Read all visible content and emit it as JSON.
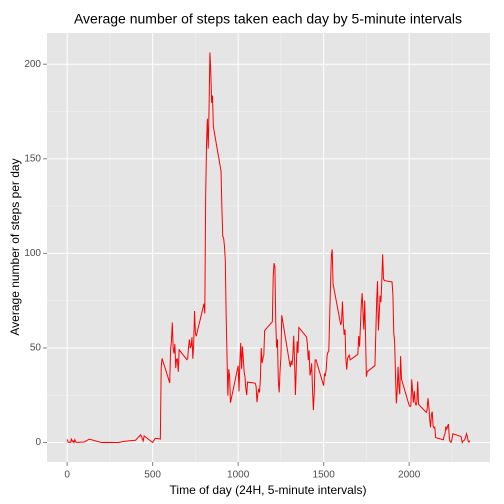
{
  "chart_data": {
    "type": "line",
    "title": "Average number of steps taken each day by 5-minute intervals",
    "xlabel": "Time of day (24H, 5-minute intervals)",
    "ylabel": "Average number of steps per day",
    "color": "#ff0000",
    "grid": true,
    "xlim": [
      -117.75,
      2472.75
    ],
    "ylim": [
      -10.3,
      216.5
    ],
    "xticks": [
      0,
      500,
      1000,
      1500,
      2000
    ],
    "yticks": [
      0,
      50,
      100,
      150,
      200
    ],
    "x_minor_grid": [
      250,
      750,
      1250,
      1750,
      2250
    ],
    "y_minor_grid": [
      25,
      75,
      125,
      175
    ],
    "x": [
      0,
      5,
      10,
      15,
      20,
      25,
      30,
      35,
      40,
      45,
      50,
      55,
      100,
      130,
      200,
      230,
      300,
      330,
      400,
      430,
      445,
      450,
      500,
      515,
      530,
      545,
      550,
      555,
      600,
      605,
      610,
      615,
      620,
      625,
      630,
      635,
      640,
      645,
      650,
      655,
      700,
      705,
      710,
      715,
      720,
      725,
      730,
      735,
      740,
      745,
      750,
      755,
      800,
      805,
      810,
      815,
      820,
      825,
      830,
      835,
      840,
      845,
      850,
      855,
      900,
      905,
      910,
      915,
      920,
      925,
      930,
      935,
      940,
      945,
      950,
      955,
      1000,
      1005,
      1010,
      1015,
      1020,
      1025,
      1030,
      1035,
      1040,
      1045,
      1050,
      1055,
      1100,
      1105,
      1110,
      1115,
      1120,
      1125,
      1130,
      1135,
      1140,
      1145,
      1150,
      1155,
      1200,
      1205,
      1210,
      1215,
      1220,
      1225,
      1230,
      1235,
      1240,
      1245,
      1250,
      1255,
      1300,
      1305,
      1310,
      1315,
      1320,
      1325,
      1330,
      1335,
      1340,
      1345,
      1350,
      1355,
      1400,
      1405,
      1410,
      1415,
      1420,
      1425,
      1430,
      1435,
      1440,
      1445,
      1450,
      1455,
      1500,
      1505,
      1510,
      1515,
      1520,
      1525,
      1530,
      1535,
      1540,
      1545,
      1550,
      1555,
      1600,
      1605,
      1610,
      1615,
      1620,
      1625,
      1630,
      1635,
      1640,
      1645,
      1650,
      1655,
      1700,
      1705,
      1710,
      1715,
      1720,
      1725,
      1730,
      1735,
      1740,
      1745,
      1750,
      1755,
      1800,
      1805,
      1810,
      1815,
      1820,
      1825,
      1830,
      1835,
      1840,
      1845,
      1850,
      1855,
      1900,
      1905,
      1910,
      1915,
      1920,
      1925,
      1930,
      1935,
      1940,
      1945,
      1950,
      1955,
      2000,
      2005,
      2010,
      2015,
      2020,
      2025,
      2030,
      2035,
      2040,
      2045,
      2050,
      2055,
      2100,
      2105,
      2110,
      2115,
      2120,
      2125,
      2130,
      2135,
      2140,
      2145,
      2150,
      2155,
      2200,
      2205,
      2210,
      2215,
      2220,
      2225,
      2230,
      2235,
      2240,
      2245,
      2250,
      2255,
      2300,
      2305,
      2310,
      2315,
      2320,
      2325,
      2330,
      2335,
      2340,
      2345,
      2350,
      2355
    ],
    "values": [
      1.7,
      0.3,
      0.1,
      0.2,
      0.1,
      2.1,
      0.5,
      0.9,
      0,
      1.5,
      0.3,
      0.1,
      0.3,
      1.8,
      0,
      0.1,
      0,
      0.6,
      1.2,
      4.1,
      0.8,
      3.5,
      0,
      2.2,
      2.1,
      1.8,
      39.45,
      44.49,
      31.5,
      49.26,
      53.77,
      63.45,
      49.96,
      47.08,
      52.15,
      39.34,
      44.02,
      44.17,
      37.36,
      49.04,
      43.81,
      44.38,
      50.51,
      54.51,
      49.92,
      50.98,
      55.68,
      44.32,
      52.26,
      69.55,
      57.85,
      56.15,
      73.38,
      68.21,
      129.43,
      157.53,
      171.15,
      155.4,
      177.3,
      206.17,
      195.92,
      179.57,
      183.4,
      167.02,
      143.45,
      124.04,
      109.11,
      108.11,
      103.72,
      95.96,
      66.21,
      45.23,
      24.79,
      38.75,
      34.98,
      21.06,
      40.57,
      26.98,
      42.42,
      52.66,
      38.92,
      50.79,
      44.28,
      37.42,
      34.7,
      28.34,
      25.09,
      31.94,
      31.36,
      29.68,
      21.32,
      25.55,
      28.38,
      26.47,
      33.43,
      49.98,
      42.04,
      44.6,
      46.04,
      59.19,
      63.87,
      87.7,
      94.85,
      92.77,
      63.4,
      50.17,
      54.47,
      32.42,
      26.53,
      37.74,
      45.06,
      67.28,
      42.34,
      39.88,
      43.26,
      40.98,
      46.25,
      56.43,
      42.75,
      25.13,
      39.96,
      53.55,
      47.32,
      60.81,
      55.75,
      51.96,
      43.58,
      48.7,
      35.47,
      37.55,
      41.85,
      27.51,
      17.11,
      26.08,
      43.62,
      43.77,
      30.02,
      36.08,
      35.49,
      38.85,
      45.96,
      47.75,
      48.13,
      65.32,
      82.91,
      98.66,
      102.11,
      83.96,
      62.13,
      64.13,
      74.55,
      63.17,
      56.91,
      59.77,
      43.87,
      38.57,
      44.66,
      45.45,
      46.21,
      43.68,
      46.62,
      56.3,
      50.72,
      61.23,
      72.72,
      78.94,
      68.94,
      59.66,
      75.09,
      56.51,
      34.77,
      37.45,
      40.68,
      58.02,
      74.7,
      85.32,
      59.26,
      67.77,
      77.7,
      74.25,
      85.34,
      99.45,
      86.58,
      85.6,
      84.87,
      77.83,
      58.04,
      53.36,
      36.32,
      20.72,
      27.4,
      40.02,
      30.21,
      25.55,
      45.66,
      33.53,
      19.62,
      19.02,
      19.34,
      33.34,
      26.81,
      21.17,
      27.3,
      21.34,
      19.55,
      21.32,
      32.3,
      20.15,
      15.94,
      17.23,
      23.45,
      19.25,
      12.45,
      8.02,
      14.66,
      16.3,
      8.68,
      7.79,
      8.13,
      2.62,
      1.45,
      3.68,
      4.81,
      8.51,
      7.08,
      8.7,
      9.75,
      2.21,
      0.32,
      0.11,
      1.6,
      4.6,
      3.3,
      2.85,
      0,
      0.83,
      0.96,
      1.58,
      2.6,
      4.7,
      3.3,
      0.64,
      0.23,
      1.08
    ]
  }
}
